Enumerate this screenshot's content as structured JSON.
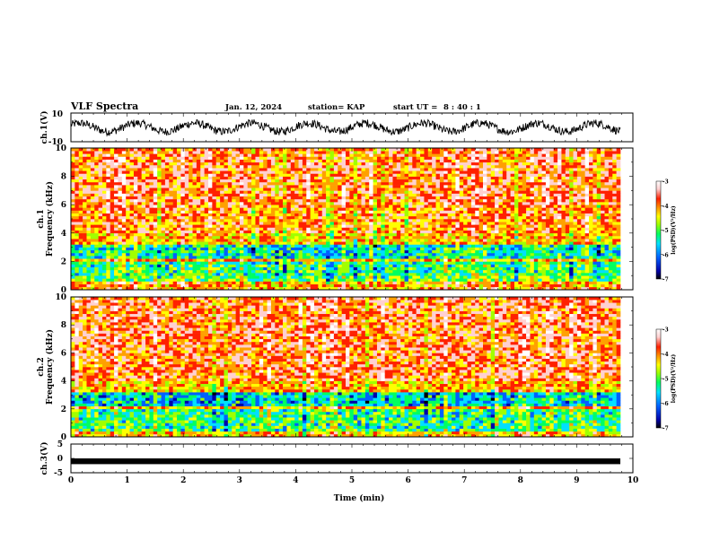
{
  "header": {
    "title": "VLF Spectra",
    "date": "Jan. 12, 2024",
    "station": "station= KAP",
    "start_label": "start UT =",
    "start_time": "8 : 40 : 1"
  },
  "colors": {
    "trace": "#000000",
    "colormap": [
      "#000000",
      "#0000a8",
      "#0060ff",
      "#00e0ff",
      "#00ff60",
      "#a0ff00",
      "#ffff00",
      "#ffa000",
      "#ff2000",
      "#ffd0d0",
      "#ffffff"
    ]
  },
  "chart_data": [
    {
      "type": "line",
      "panel": "ch1-waveform",
      "ylabel": "ch.1(V)",
      "ylim": [
        -10,
        10
      ],
      "yticks": [
        "10",
        "-10"
      ],
      "xlim": [
        0,
        10
      ],
      "series": [
        {
          "values_description_free": true,
          "amplitude": 5,
          "baseline": 0
        }
      ]
    },
    {
      "type": "heatmap",
      "panel": "ch1-spectrogram",
      "ylabel_top": "ch.1",
      "ylabel": "Frequency (kHz)",
      "yticks": [
        "0",
        "2",
        "4",
        "6",
        "8",
        "10"
      ],
      "ylim": [
        0,
        10
      ],
      "xlim": [
        0,
        10
      ],
      "colorbar": {
        "label": "log(PSD)(V²/Hz)",
        "ticks": [
          "-3",
          "-4",
          "-5",
          "-6",
          "-7"
        ],
        "range": [
          -7,
          -3
        ]
      },
      "bands_khz": [
        {
          "from": 0.0,
          "to": 0.6,
          "level": -4.2
        },
        {
          "from": 0.6,
          "to": 1.0,
          "level": -5.2
        },
        {
          "from": 1.0,
          "to": 2.0,
          "level": -5.4
        },
        {
          "from": 2.0,
          "to": 2.3,
          "level": -4.3
        },
        {
          "from": 2.3,
          "to": 3.3,
          "level": -5.6
        },
        {
          "from": 3.3,
          "to": 4.0,
          "level": -4.4
        },
        {
          "from": 4.0,
          "to": 6.0,
          "level": -4.1
        },
        {
          "from": 6.0,
          "to": 10.0,
          "level": -3.9
        }
      ]
    },
    {
      "type": "heatmap",
      "panel": "ch2-spectrogram",
      "ylabel_top": "ch.2",
      "ylabel": "Frequency (kHz)",
      "yticks": [
        "0",
        "2",
        "4",
        "6",
        "8",
        "10"
      ],
      "ylim": [
        0,
        10
      ],
      "xlim": [
        0,
        10
      ],
      "colorbar": {
        "label": "log(PSD)(V²/Hz)",
        "ticks": [
          "-3",
          "-4",
          "-5",
          "-6",
          "-7"
        ],
        "range": [
          -7,
          -3
        ]
      },
      "bands_khz": [
        {
          "from": 0.0,
          "to": 0.5,
          "level": -4.4
        },
        {
          "from": 0.5,
          "to": 2.0,
          "level": -5.4
        },
        {
          "from": 2.0,
          "to": 2.3,
          "level": -4.3
        },
        {
          "from": 2.3,
          "to": 3.2,
          "level": -5.8
        },
        {
          "from": 3.2,
          "to": 4.0,
          "level": -4.4
        },
        {
          "from": 4.0,
          "to": 10.0,
          "level": -3.9
        }
      ]
    },
    {
      "type": "line",
      "panel": "ch3-waveform",
      "ylabel": "ch.3(V)",
      "ylim": [
        -5,
        5
      ],
      "yticks": [
        "5",
        "0",
        "-5"
      ],
      "xlim": [
        0,
        10
      ],
      "xlabel": "Time (min)",
      "xticks": [
        "0",
        "1",
        "2",
        "3",
        "4",
        "5",
        "6",
        "7",
        "8",
        "9",
        "10"
      ],
      "series": [
        {
          "baseline": -1.0,
          "band_halfwidth": 0.4
        }
      ]
    }
  ]
}
